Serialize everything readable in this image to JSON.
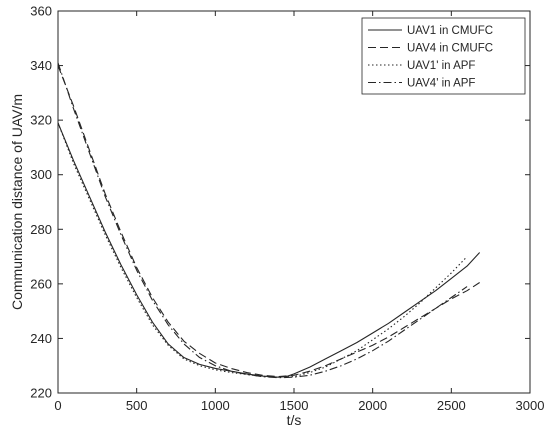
{
  "chart_data": {
    "type": "line",
    "title": "",
    "xlabel": "t/s",
    "ylabel": "Communication distance of UAV/m",
    "xlim": [
      0,
      3000
    ],
    "ylim": [
      220,
      360
    ],
    "xticks": [
      0,
      500,
      1000,
      1500,
      2000,
      2500,
      3000
    ],
    "yticks": [
      220,
      240,
      260,
      280,
      300,
      320,
      340,
      360
    ],
    "xtick_labels": [
      "0",
      "500",
      "1000",
      "1500",
      "2000",
      "2500",
      "3000"
    ],
    "ytick_labels": [
      "220",
      "240",
      "260",
      "280",
      "300",
      "320",
      "340",
      "360"
    ],
    "grid": false,
    "legend_position": "top-right",
    "series": [
      {
        "name": "UAV1 in CMUFC",
        "style": "solid",
        "x": [
          0,
          100,
          200,
          300,
          400,
          500,
          600,
          700,
          800,
          900,
          1000,
          1100,
          1200,
          1300,
          1400,
          1450,
          1500,
          1600,
          1700,
          1800,
          1900,
          2000,
          2100,
          2200,
          2300,
          2400,
          2500,
          2600,
          2680
        ],
        "y": [
          319,
          305,
          292,
          279,
          267,
          256,
          246,
          238,
          233,
          230.5,
          229,
          228,
          227,
          226.2,
          225.8,
          226,
          227,
          229.5,
          232.5,
          235.5,
          238.5,
          242,
          245.5,
          249.5,
          253.5,
          257.5,
          262,
          266.5,
          271.5
        ]
      },
      {
        "name": "UAV4 in CMUFC",
        "style": "dashed",
        "x": [
          0,
          100,
          200,
          300,
          400,
          500,
          600,
          700,
          800,
          900,
          1000,
          1100,
          1200,
          1300,
          1400,
          1500,
          1600,
          1700,
          1800,
          1900,
          2000,
          2100,
          2200,
          2300,
          2400,
          2500,
          2600,
          2680
        ],
        "y": [
          340,
          325,
          309,
          293,
          279,
          266,
          255,
          246,
          239,
          234.5,
          231,
          229,
          227.5,
          226.5,
          226,
          226.5,
          228,
          230,
          232.5,
          235,
          237.5,
          240.5,
          244,
          247.5,
          251,
          254.5,
          257.5,
          260.5
        ]
      },
      {
        "name": "UAV1' in APF",
        "style": "dotted",
        "x": [
          0,
          100,
          200,
          300,
          400,
          500,
          600,
          700,
          800,
          900,
          1000,
          1100,
          1200,
          1300,
          1400,
          1500,
          1600,
          1700,
          1800,
          1900,
          2000,
          2100,
          2200,
          2300,
          2400,
          2500,
          2600
        ],
        "y": [
          319,
          304,
          291,
          278,
          266,
          255,
          245,
          237.5,
          232.5,
          230,
          228.5,
          227.5,
          226.8,
          226,
          225.8,
          226,
          227.5,
          229.5,
          232.5,
          235.5,
          239.5,
          243.5,
          248,
          253,
          258.5,
          264,
          270
        ]
      },
      {
        "name": "UAV4' in APF",
        "style": "dashdot",
        "x": [
          0,
          100,
          200,
          300,
          400,
          500,
          600,
          700,
          800,
          900,
          1000,
          1100,
          1200,
          1300,
          1400,
          1500,
          1600,
          1700,
          1800,
          1900,
          2000,
          2100,
          2200,
          2300,
          2400,
          2500,
          2600
        ],
        "y": [
          341,
          324,
          308,
          292,
          278,
          265,
          254,
          245,
          238,
          233,
          230,
          228,
          226.8,
          226,
          225.6,
          225.8,
          226.5,
          228,
          230,
          232.5,
          235.5,
          239,
          243,
          247,
          251,
          255,
          259
        ]
      }
    ]
  }
}
